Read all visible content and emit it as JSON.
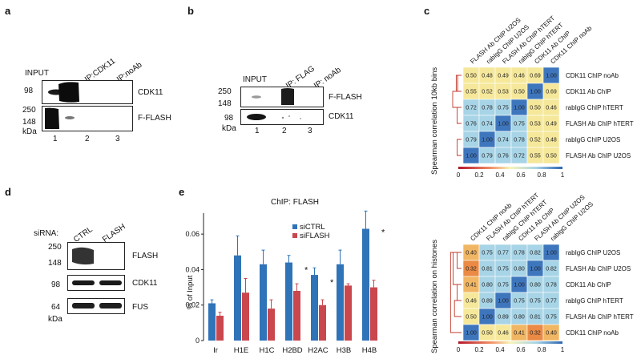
{
  "panels": {
    "a": {
      "label": "a",
      "lanes": [
        "INPUT",
        "IP:CDK11",
        "IP:noAb"
      ],
      "rows": [
        {
          "marker": "98",
          "protein": "CDK11"
        },
        {
          "marker": "250",
          "protein": "F-FLASH"
        }
      ],
      "marker_extra": "148",
      "kda": "kDa",
      "lane_numbers": [
        "1",
        "2",
        "3"
      ]
    },
    "b": {
      "label": "b",
      "lanes": [
        "INPUT",
        "IP: FLAG",
        "IP: noAb"
      ],
      "rows": [
        {
          "markers": [
            "250",
            "148"
          ],
          "protein": "F-FLASH"
        },
        {
          "markers": [
            "98"
          ],
          "protein": "CDK11"
        }
      ],
      "kda": "kDa",
      "lane_numbers": [
        "1",
        "2",
        "3"
      ]
    },
    "c": {
      "label": "c",
      "matrices": [
        {
          "ylabel": "Spearman correlation 10kb bins",
          "col_labels": [
            "FLASH Ab ChIP U2OS",
            "rabIgG ChIP U2OS",
            "FLASH Ab ChIP hTERT",
            "rabIgG ChIP hTERT",
            "CDK11 Ab ChIP",
            "CDK11 ChIP noAb"
          ],
          "row_labels": [
            "CDK11 ChIP noAb",
            "CDK11 Ab ChIP",
            "rabIgG ChIP hTERT",
            "FLASH Ab ChIP hTERT",
            "rabIgG ChIP U2OS",
            "FLASH Ab ChIP U2OS"
          ],
          "values": [
            [
              "0.50",
              "0.48",
              "0.49",
              "0.46",
              "0.69",
              "1.00"
            ],
            [
              "0.55",
              "0.52",
              "0.53",
              "0.50",
              "1.00",
              "0.69"
            ],
            [
              "0.72",
              "0.78",
              "0.75",
              "1.00",
              "0.50",
              "0.46"
            ],
            [
              "0.76",
              "0.74",
              "1.00",
              "0.75",
              "0.53",
              "0.49"
            ],
            [
              "0.79",
              "1.00",
              "0.74",
              "0.78",
              "0.52",
              "0.48"
            ],
            [
              "1.00",
              "0.79",
              "0.76",
              "0.72",
              "0.55",
              "0.50"
            ]
          ],
          "colorbar_ticks": [
            "0",
            "0.2",
            "0.4",
            "0.6",
            "0.8",
            "1"
          ]
        },
        {
          "ylabel": "Spearman correlation on histones",
          "col_labels": [
            "CDK11 ChIP noAb",
            "FLASH Ab ChIP hTERT",
            "rabIgG ChIP hTERT",
            "CDK11 Ab ChIP",
            "FLASH Ab ChIP U2OS",
            "rabIgG ChIP U2OS"
          ],
          "row_labels": [
            "rabIgG ChIP U2OS",
            "FLASH Ab ChIP U2OS",
            "CDK11 Ab ChIP",
            "rabIgG ChIP hTERT",
            "FLASH Ab ChIP hTERT",
            "CDK11 ChIP noAb"
          ],
          "values": [
            [
              "0.40",
              "0.75",
              "0.77",
              "0.78",
              "0.82",
              "1.00"
            ],
            [
              "0.32",
              "0.81",
              "0.75",
              "0.80",
              "1.00",
              "0.82"
            ],
            [
              "0.41",
              "0.80",
              "0.75",
              "1.00",
              "0.80",
              "0.78"
            ],
            [
              "0.46",
              "0.89",
              "1.00",
              "0.75",
              "0.75",
              "0.77"
            ],
            [
              "0.50",
              "1.00",
              "0.89",
              "0.80",
              "0.81",
              "0.75"
            ],
            [
              "1.00",
              "0.50",
              "0.46",
              "0.41",
              "0.32",
              "0.40"
            ]
          ],
          "colorbar_ticks": [
            "0",
            "0.2",
            "0.4",
            "0.6",
            "0.8",
            "1"
          ]
        }
      ]
    },
    "d": {
      "label": "d",
      "sirna": "siRNA:",
      "lanes": [
        "CTRL",
        "FLASH"
      ],
      "rows": [
        {
          "markers": [
            "250",
            "148"
          ],
          "protein": "FLASH"
        },
        {
          "markers": [
            "98"
          ],
          "protein": "CDK11"
        },
        {
          "markers": [
            "64"
          ],
          "protein": "FUS"
        }
      ],
      "kda": "kDa"
    },
    "e": {
      "label": "e"
    }
  },
  "chart_data": {
    "type": "bar",
    "title": "ChIP: FLASH",
    "ylabel": "% of Input",
    "xlabel": "",
    "categories": [
      "Ir",
      "H1E",
      "H1C",
      "H2BD",
      "H2AC",
      "H3B",
      "H4B"
    ],
    "series": [
      {
        "name": "siCTRL",
        "color": "#2f73b8",
        "values": [
          0.021,
          0.048,
          0.043,
          0.044,
          0.037,
          0.043,
          0.063
        ],
        "errors": [
          0.002,
          0.011,
          0.008,
          0.004,
          0.004,
          0.008,
          0.01
        ]
      },
      {
        "name": "siFLASH",
        "color": "#c9474d",
        "values": [
          0.014,
          0.027,
          0.018,
          0.028,
          0.02,
          0.031,
          0.03
        ],
        "errors": [
          0.002,
          0.008,
          0.005,
          0.004,
          0.003,
          0.001,
          0.004
        ]
      }
    ],
    "significance": [
      "",
      "",
      "",
      "*",
      "*",
      "",
      "*"
    ],
    "yticks": [
      "0",
      "0.02",
      "0.04",
      "0.06"
    ],
    "ylim": [
      0,
      0.07
    ]
  }
}
